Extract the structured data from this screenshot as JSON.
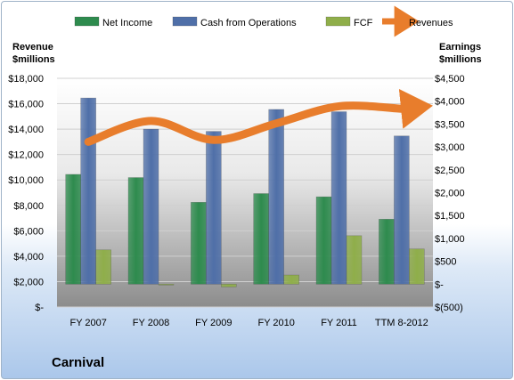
{
  "company_name": "Carnival",
  "left_axis_title": "Revenue\n$millions",
  "right_axis_title": "Earnings\n$millions",
  "chart_data": {
    "type": "bar",
    "categories": [
      "FY 2007",
      "FY 2008",
      "FY 2009",
      "FY 2010",
      "FY 2011",
      "TTM 8-2012"
    ],
    "series": [
      {
        "name": "Net Income",
        "axis": "right",
        "values": [
          2400,
          2330,
          1790,
          1980,
          1910,
          1420
        ],
        "color": "#2e8b4e"
      },
      {
        "name": "Cash from Operations",
        "axis": "right",
        "values": [
          4070,
          3390,
          3340,
          3820,
          3770,
          3240
        ],
        "color": "#4f6fa8"
      },
      {
        "name": "FCF",
        "axis": "right",
        "values": [
          750,
          -10,
          -60,
          200,
          1060,
          770
        ],
        "color": "#8fae4a"
      }
    ],
    "line_series": {
      "name": "Revenues",
      "axis": "left",
      "values": [
        13000,
        14650,
        13150,
        14450,
        15800,
        15600
      ],
      "color": "#e87d2c"
    },
    "left_axis": {
      "min": 0,
      "max": 18000,
      "step": 2000,
      "tick_labels": [
        "$-",
        "$2,000",
        "$4,000",
        "$6,000",
        "$8,000",
        "$10,000",
        "$12,000",
        "$14,000",
        "$16,000",
        "$18,000"
      ]
    },
    "right_axis": {
      "min": -500,
      "max": 4500,
      "step": 500,
      "tick_labels": [
        "$(500)",
        "$-",
        "$500",
        "$1,000",
        "$1,500",
        "$2,000",
        "$2,500",
        "$3,000",
        "$3,500",
        "$4,000",
        "$4,500"
      ]
    },
    "legend_position": "top",
    "grid": true
  }
}
